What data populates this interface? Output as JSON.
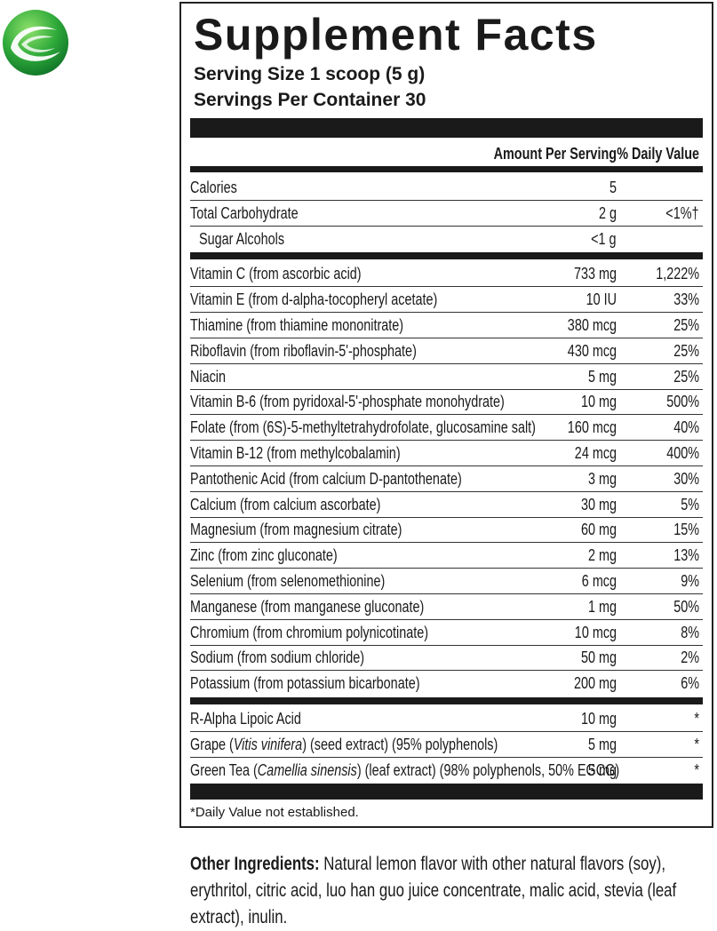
{
  "title": "Supplement Facts",
  "serving_size": "Serving Size  1 scoop (5 g)",
  "servings_per_container": "Servings Per Container 30",
  "header": {
    "amount": "Amount Per Serving",
    "dv": "% Daily Value"
  },
  "sections": [
    [
      {
        "name": "Calories",
        "amount": "5"
      },
      {
        "name": "Total Carbohydrate",
        "amount": "2 g",
        "dv": "<1%†",
        "sub_rows": [
          {
            "name": "Sugar Alcohols",
            "amount": "<1 g"
          }
        ]
      }
    ],
    [
      {
        "name": "Vitamin C (from ascorbic acid)",
        "amount": "733 mg",
        "dv": "1,222%"
      },
      {
        "name": "Vitamin E (from d-alpha-tocopheryl acetate)",
        "amount": "10 IU",
        "dv": "33%"
      },
      {
        "name": "Thiamine (from thiamine mononitrate)",
        "amount": "380 mcg",
        "dv": "25%"
      },
      {
        "name": "Riboflavin (from riboflavin-5'-phosphate)",
        "amount": "430 mcg",
        "dv": "25%"
      },
      {
        "name": "Niacin",
        "amount": "5 mg",
        "dv": "25%"
      },
      {
        "name": "Vitamin B-6 (from pyridoxal-5'-phosphate monohydrate)",
        "amount": "10 mg",
        "dv": "500%"
      },
      {
        "name": "Folate (from (6S)-5-methyltetrahydrofolate, glucosamine salt)",
        "amount": "160 mcg",
        "dv": "40%"
      },
      {
        "name": "Vitamin B-12 (from methylcobalamin)",
        "amount": "24 mcg",
        "dv": "400%"
      },
      {
        "name": "Pantothenic Acid (from calcium D-pantothenate)",
        "amount": "3 mg",
        "dv": "30%"
      },
      {
        "name": "Calcium (from calcium ascorbate)",
        "amount": "30 mg",
        "dv": "5%"
      },
      {
        "name": "Magnesium (from magnesium citrate)",
        "amount": "60 mg",
        "dv": "15%"
      },
      {
        "name": "Zinc (from zinc gluconate)",
        "amount": "2 mg",
        "dv": "13%"
      },
      {
        "name": "Selenium (from selenomethionine)",
        "amount": "6 mcg",
        "dv": "9%"
      },
      {
        "name": "Manganese (from manganese gluconate)",
        "amount": "1 mg",
        "dv": "50%"
      },
      {
        "name": "Chromium (from chromium polynicotinate)",
        "amount": "10 mcg",
        "dv": "8%"
      },
      {
        "name": "Sodium (from sodium chloride)",
        "amount": "50 mg",
        "dv": "2%"
      },
      {
        "name": "Potassium (from potassium bicarbonate)",
        "amount": "200 mg",
        "dv": "6%"
      }
    ],
    [
      {
        "name": "R-Alpha Lipoic Acid",
        "amount": "10 mg",
        "dv": "*"
      },
      {
        "name_parts": [
          "Grape (",
          "Vitis vinifera",
          ") (seed extract) (95% polyphenols)"
        ],
        "amount": "5 mg",
        "dv": "*"
      },
      {
        "name_parts": [
          "Green Tea (",
          "Camellia sinensis",
          ") (leaf extract) (98% polyphenols, 50% EGCG)"
        ],
        "amount": "5 mg",
        "dv": "*"
      }
    ]
  ],
  "footnote": "*Daily Value not established.",
  "other_ingredients": {
    "label": "Other Ingredients:",
    "text": "Natural lemon flavor with other natural flavors (soy), erythritol, citric acid, luo han guo juice concentrate, malic acid, stevia (leaf extract), inulin."
  }
}
